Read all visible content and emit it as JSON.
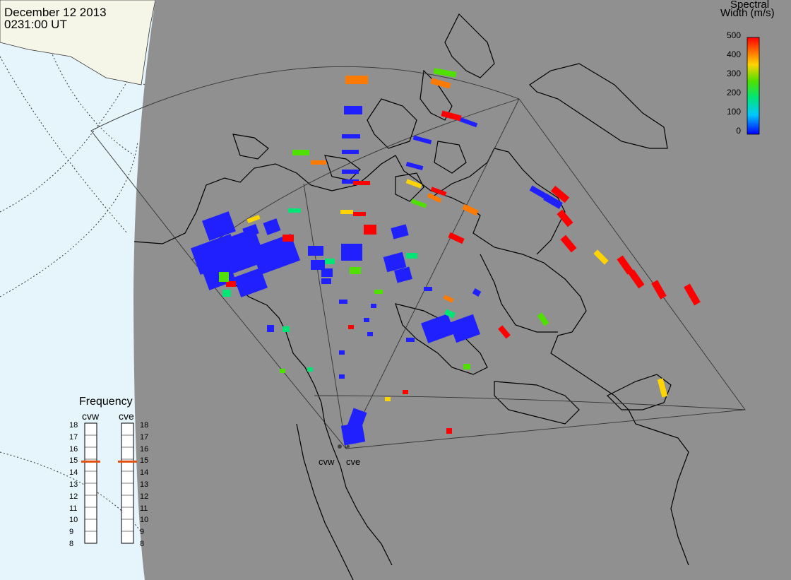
{
  "header": {
    "date": "December 12 2013",
    "time": "0231:00 UT"
  },
  "colorbar": {
    "title_line1": "Spectral",
    "title_line2": "Width (m/s)",
    "ticks": [
      "500",
      "400",
      "300",
      "200",
      "100",
      "0"
    ],
    "range": [
      0,
      500
    ],
    "colors": [
      "#0000ff",
      "#00c8ff",
      "#00e676",
      "#50e000",
      "#ffd400",
      "#ff6a00",
      "#ff0000"
    ]
  },
  "frequency": {
    "title": "Frequency",
    "radars": [
      {
        "name": "cvw",
        "value": 15
      },
      {
        "name": "cve",
        "value": 15
      }
    ],
    "ticks": [
      "18",
      "17",
      "16",
      "15",
      "14",
      "13",
      "12",
      "11",
      "10",
      "9",
      "8"
    ]
  },
  "map": {
    "radar_sites": [
      {
        "label": "cvw"
      },
      {
        "label": "cve"
      }
    ],
    "background_color": "#909090",
    "ocean_color": "#e6f4fc",
    "land_color": "#f6f6e8"
  }
}
